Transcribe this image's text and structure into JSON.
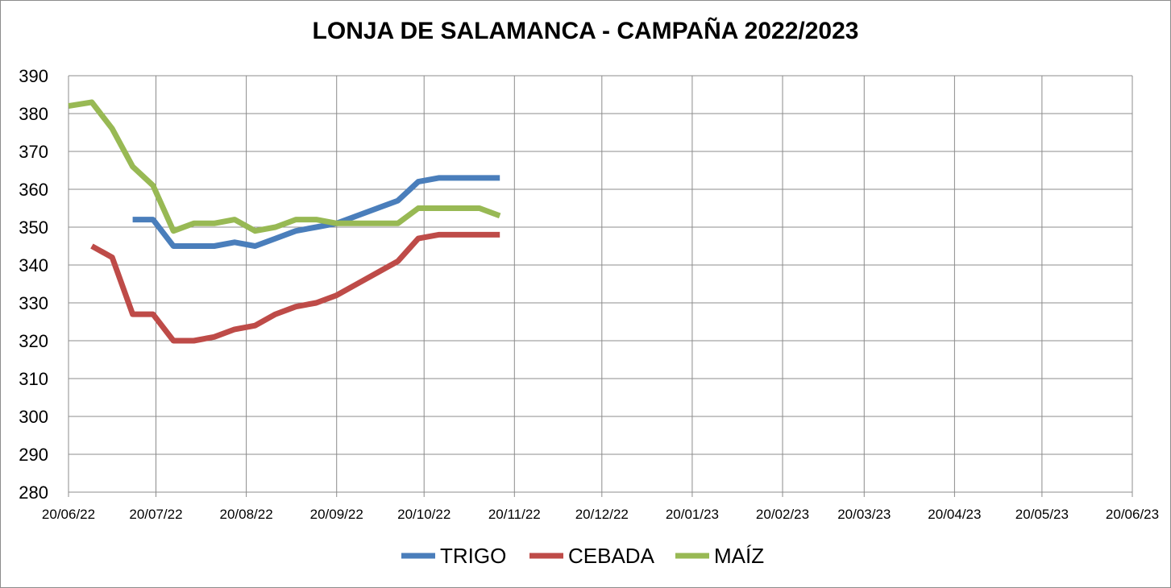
{
  "chart_data": {
    "type": "line",
    "title": "LONJA DE SALAMANCA - CAMPAÑA 2022/2023",
    "xlabel": "",
    "ylabel": "",
    "ylim": [
      280,
      390
    ],
    "yticks": [
      280,
      290,
      300,
      310,
      320,
      330,
      340,
      350,
      360,
      370,
      380,
      390
    ],
    "xlim": [
      "2022-06-20",
      "2023-06-20"
    ],
    "xticks": [
      "20/06/22",
      "20/07/22",
      "20/08/22",
      "20/09/22",
      "20/10/22",
      "20/11/22",
      "20/12/22",
      "20/01/23",
      "20/02/23",
      "20/03/23",
      "20/04/23",
      "20/05/23",
      "20/06/23"
    ],
    "grid": true,
    "legend_position": "bottom",
    "series": [
      {
        "name": "TRIGO",
        "color": "#4a7ebb",
        "points": [
          [
            "2022-07-12",
            352
          ],
          [
            "2022-07-19",
            352
          ],
          [
            "2022-07-26",
            345
          ],
          [
            "2022-08-02",
            345
          ],
          [
            "2022-08-09",
            345
          ],
          [
            "2022-08-16",
            346
          ],
          [
            "2022-08-23",
            345
          ],
          [
            "2022-08-30",
            347
          ],
          [
            "2022-09-06",
            349
          ],
          [
            "2022-09-13",
            350
          ],
          [
            "2022-09-20",
            351
          ],
          [
            "2022-09-27",
            353
          ],
          [
            "2022-10-04",
            355
          ],
          [
            "2022-10-11",
            357
          ],
          [
            "2022-10-18",
            362
          ],
          [
            "2022-10-25",
            363
          ],
          [
            "2022-11-01",
            363
          ],
          [
            "2022-11-08",
            363
          ],
          [
            "2022-11-15",
            363
          ]
        ]
      },
      {
        "name": "CEBADA",
        "color": "#be4b48",
        "points": [
          [
            "2022-06-28",
            345
          ],
          [
            "2022-07-05",
            342
          ],
          [
            "2022-07-12",
            327
          ],
          [
            "2022-07-19",
            327
          ],
          [
            "2022-07-26",
            320
          ],
          [
            "2022-08-02",
            320
          ],
          [
            "2022-08-09",
            321
          ],
          [
            "2022-08-16",
            323
          ],
          [
            "2022-08-23",
            324
          ],
          [
            "2022-08-30",
            327
          ],
          [
            "2022-09-06",
            329
          ],
          [
            "2022-09-13",
            330
          ],
          [
            "2022-09-20",
            332
          ],
          [
            "2022-09-27",
            335
          ],
          [
            "2022-10-04",
            338
          ],
          [
            "2022-10-11",
            341
          ],
          [
            "2022-10-18",
            347
          ],
          [
            "2022-10-25",
            348
          ],
          [
            "2022-11-01",
            348
          ],
          [
            "2022-11-08",
            348
          ],
          [
            "2022-11-15",
            348
          ]
        ]
      },
      {
        "name": "MAÍZ",
        "color": "#98b954",
        "points": [
          [
            "2022-06-20",
            382
          ],
          [
            "2022-06-28",
            383
          ],
          [
            "2022-07-05",
            376
          ],
          [
            "2022-07-12",
            366
          ],
          [
            "2022-07-19",
            361
          ],
          [
            "2022-07-26",
            349
          ],
          [
            "2022-08-02",
            351
          ],
          [
            "2022-08-09",
            351
          ],
          [
            "2022-08-16",
            352
          ],
          [
            "2022-08-23",
            349
          ],
          [
            "2022-08-30",
            350
          ],
          [
            "2022-09-06",
            352
          ],
          [
            "2022-09-13",
            352
          ],
          [
            "2022-09-20",
            351
          ],
          [
            "2022-09-27",
            351
          ],
          [
            "2022-10-04",
            351
          ],
          [
            "2022-10-11",
            351
          ],
          [
            "2022-10-18",
            355
          ],
          [
            "2022-10-25",
            355
          ],
          [
            "2022-11-01",
            355
          ],
          [
            "2022-11-08",
            355
          ],
          [
            "2022-11-15",
            353
          ]
        ]
      }
    ]
  }
}
